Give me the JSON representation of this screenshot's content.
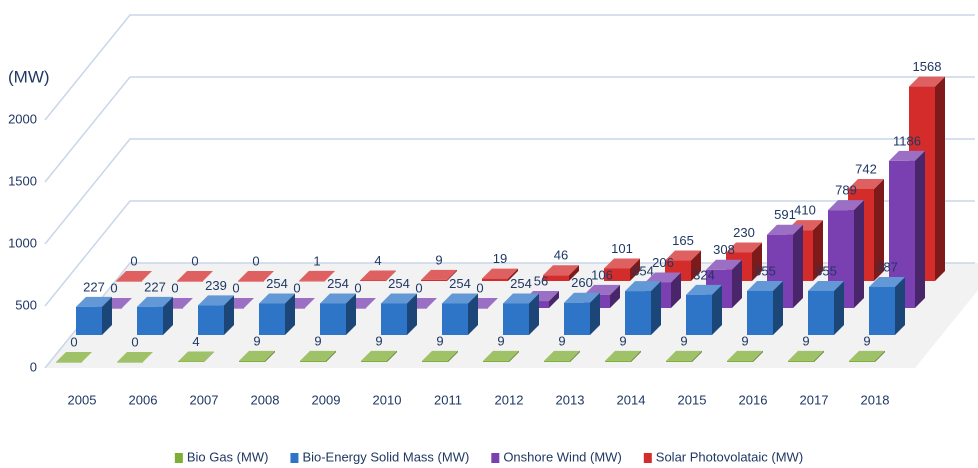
{
  "chart_data": {
    "type": "bar3d",
    "y_label": "(MW)",
    "categories": [
      "2005",
      "2006",
      "2007",
      "2008",
      "2009",
      "2010",
      "2011",
      "2012",
      "2013",
      "2014",
      "2015",
      "2016",
      "2017",
      "2018"
    ],
    "series": [
      {
        "name": "Bio Gas (MW)",
        "color": "#7fae35",
        "values": [
          0,
          0,
          4,
          9,
          9,
          9,
          9,
          9,
          9,
          9,
          9,
          9,
          9,
          9
        ]
      },
      {
        "name": "Bio-Energy Solid Mass (MW)",
        "color": "#2e75c8",
        "values": [
          227,
          227,
          239,
          254,
          254,
          254,
          254,
          254,
          260,
          354,
          324,
          355,
          355,
          387
        ]
      },
      {
        "name": "Onshore Wind (MW)",
        "color": "#7a3fb0",
        "values": [
          0,
          0,
          0,
          0,
          0,
          0,
          0,
          56,
          106,
          206,
          308,
          591,
          789,
          1186
        ]
      },
      {
        "name": "Solar Photovolataic (MW)",
        "color": "#d42b2b",
        "values": [
          0,
          0,
          0,
          1,
          4,
          9,
          19,
          46,
          101,
          165,
          230,
          410,
          742,
          1568
        ]
      }
    ],
    "ylim": [
      0,
      2000
    ],
    "yticks": [
      0,
      500,
      1000,
      1500,
      2000
    ],
    "grid": true,
    "legend": "bottom"
  }
}
